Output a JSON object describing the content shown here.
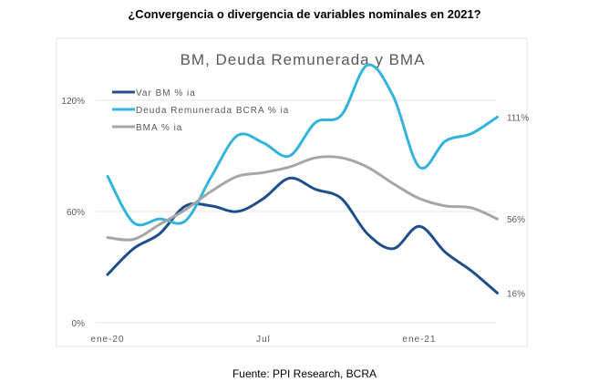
{
  "page_title": "¿Convergencia o divergencia de variables nominales en 2021?",
  "source": "Fuente: PPI Research, BCRA",
  "chart_data": {
    "type": "line",
    "title": "BM, Deuda Remunerada y BMA",
    "x": [
      "ene-20",
      "feb-20",
      "mar-20",
      "abr-20",
      "may-20",
      "jun-20",
      "jul-20",
      "ago-20",
      "sep-20",
      "oct-20",
      "nov-20",
      "dic-20",
      "ene-21",
      "feb-21",
      "mar-21",
      "abr-21"
    ],
    "xtick_labels": [
      {
        "index": 0,
        "label": "ene-20"
      },
      {
        "index": 6,
        "label": "Jul"
      },
      {
        "index": 12,
        "label": "ene-21"
      }
    ],
    "yticks": [
      {
        "value": 0,
        "label": "0%"
      },
      {
        "value": 60,
        "label": "60%"
      },
      {
        "value": 120,
        "label": "120%"
      }
    ],
    "ylim": [
      0,
      140
    ],
    "grid": true,
    "legend_position": "top-left",
    "series": [
      {
        "name": "Var BM % ia",
        "color": "#1f4e8c",
        "values": [
          26,
          40,
          48,
          63,
          63,
          60,
          67,
          78,
          72,
          67,
          48,
          40,
          52,
          38,
          28,
          16
        ],
        "end_label": "16%"
      },
      {
        "name": "Deuda Remunerada BCRA % ia",
        "color": "#34b4dc",
        "values": [
          79,
          54,
          56,
          55,
          79,
          101,
          97,
          90,
          108,
          112,
          139,
          122,
          84,
          98,
          102,
          111
        ],
        "end_label": "111%"
      },
      {
        "name": "BMA % ia",
        "color": "#a6a6a6",
        "values": [
          46,
          45,
          53,
          61,
          71,
          79,
          81,
          84,
          89,
          89,
          84,
          75,
          67,
          63,
          62,
          56
        ],
        "end_label": "56%"
      }
    ]
  }
}
